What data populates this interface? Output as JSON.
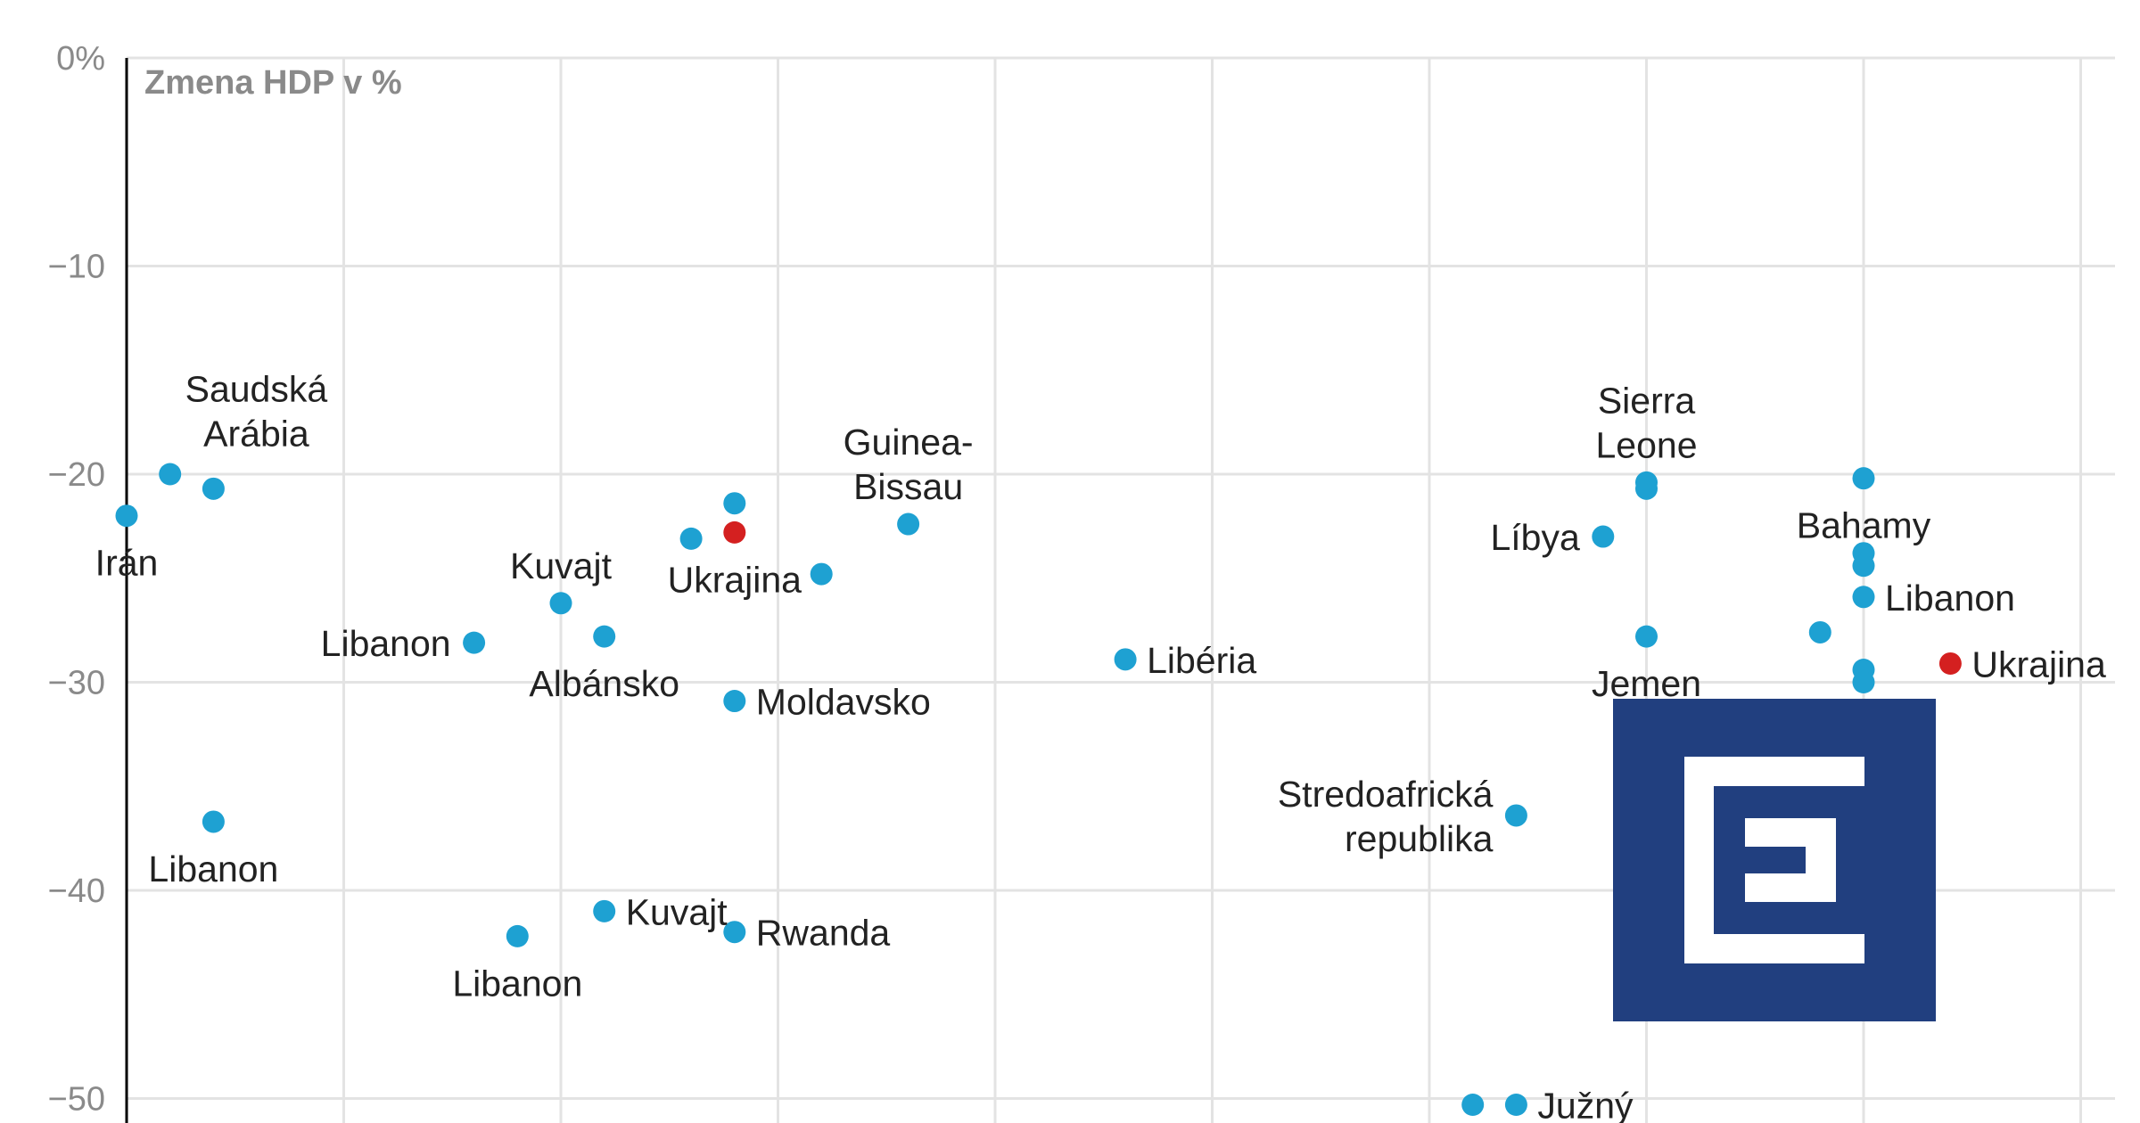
{
  "chart_data": {
    "type": "scatter",
    "title": "",
    "xlabel": "",
    "ylabel": "Zmena HDP v %",
    "ylim": [
      -52,
      0
    ],
    "xlim": [
      0,
      9.2
    ],
    "y_ticks": [
      0,
      -10,
      -20,
      -30,
      -40,
      -50
    ],
    "y_tick_labels": [
      "0%",
      "−10",
      "−20",
      "−30",
      "−40",
      "−50"
    ],
    "x_grid": [
      0,
      1,
      2,
      3,
      4,
      5,
      6,
      7,
      8,
      9
    ],
    "grid": true,
    "colors": {
      "default": "#1ea1d2",
      "highlight": "#d42020",
      "grid": "#e3e3e3",
      "logo_bg": "#213f7f",
      "logo_fg": "#ffffff"
    },
    "points": [
      {
        "x": 0.0,
        "y": -22.0,
        "label": "Irán",
        "pos": "below",
        "highlight": false
      },
      {
        "x": 0.2,
        "y": -20.0,
        "label": "",
        "pos": "",
        "highlight": false
      },
      {
        "x": 0.4,
        "y": -20.7,
        "label": "Saudská\nArábia",
        "pos": "above-left",
        "highlight": false
      },
      {
        "x": 0.4,
        "y": -36.7,
        "label": "Libanon",
        "pos": "below",
        "highlight": false
      },
      {
        "x": 1.6,
        "y": -28.1,
        "label": "Libanon",
        "pos": "left",
        "highlight": false
      },
      {
        "x": 1.8,
        "y": -42.2,
        "label": "Libanon",
        "pos": "below",
        "highlight": false
      },
      {
        "x": 2.0,
        "y": -26.2,
        "label": "Kuvajt",
        "pos": "above",
        "highlight": false
      },
      {
        "x": 2.2,
        "y": -27.8,
        "label": "Albánsko",
        "pos": "below",
        "highlight": false
      },
      {
        "x": 2.2,
        "y": -41.0,
        "label": "Kuvajt",
        "pos": "right",
        "highlight": false
      },
      {
        "x": 2.6,
        "y": -23.1,
        "label": "",
        "pos": "",
        "highlight": false
      },
      {
        "x": 2.8,
        "y": -21.4,
        "label": "",
        "pos": "",
        "highlight": false
      },
      {
        "x": 2.8,
        "y": -22.8,
        "label": "Ukrajina",
        "pos": "below",
        "highlight": true
      },
      {
        "x": 3.2,
        "y": -24.8,
        "label": "",
        "pos": "",
        "highlight": false
      },
      {
        "x": 2.8,
        "y": -30.9,
        "label": "Moldavsko",
        "pos": "right",
        "highlight": false
      },
      {
        "x": 2.8,
        "y": -42.0,
        "label": "Rwanda",
        "pos": "right",
        "highlight": false
      },
      {
        "x": 3.6,
        "y": -22.4,
        "label": "Guinea-\nBissau",
        "pos": "above",
        "highlight": false
      },
      {
        "x": 4.6,
        "y": -28.9,
        "label": "Libéria",
        "pos": "right",
        "highlight": false
      },
      {
        "x": 6.4,
        "y": -36.4,
        "label": "Stredoafrická\nrepublika",
        "pos": "left",
        "highlight": false
      },
      {
        "x": 6.2,
        "y": -50.3,
        "label": "",
        "pos": "",
        "highlight": false
      },
      {
        "x": 6.4,
        "y": -50.3,
        "label": "Južný",
        "pos": "right",
        "highlight": false
      },
      {
        "x": 6.8,
        "y": -23.0,
        "label": "Líbya",
        "pos": "left",
        "highlight": false
      },
      {
        "x": 7.0,
        "y": -20.4,
        "label": "Sierra\nLeone",
        "pos": "above",
        "highlight": false
      },
      {
        "x": 7.0,
        "y": -20.7,
        "label": "",
        "pos": "",
        "highlight": false
      },
      {
        "x": 7.0,
        "y": -27.8,
        "label": "Jemen",
        "pos": "below",
        "highlight": false
      },
      {
        "x": 7.8,
        "y": -27.6,
        "label": "",
        "pos": "",
        "highlight": false
      },
      {
        "x": 8.0,
        "y": -20.2,
        "label": "Bahamy",
        "pos": "below",
        "highlight": false
      },
      {
        "x": 8.0,
        "y": -23.8,
        "label": "",
        "pos": "",
        "highlight": false
      },
      {
        "x": 8.0,
        "y": -24.4,
        "label": "",
        "pos": "",
        "highlight": false
      },
      {
        "x": 8.0,
        "y": -25.9,
        "label": "Libanon",
        "pos": "right",
        "highlight": false
      },
      {
        "x": 8.0,
        "y": -29.4,
        "label": "",
        "pos": "",
        "highlight": false
      },
      {
        "x": 8.0,
        "y": -30.0,
        "label": "",
        "pos": "",
        "highlight": false
      },
      {
        "x": 8.4,
        "y": -29.1,
        "label": "Ukrajina",
        "pos": "right",
        "highlight": true
      }
    ]
  },
  "logo": {
    "name": "e-logo"
  }
}
